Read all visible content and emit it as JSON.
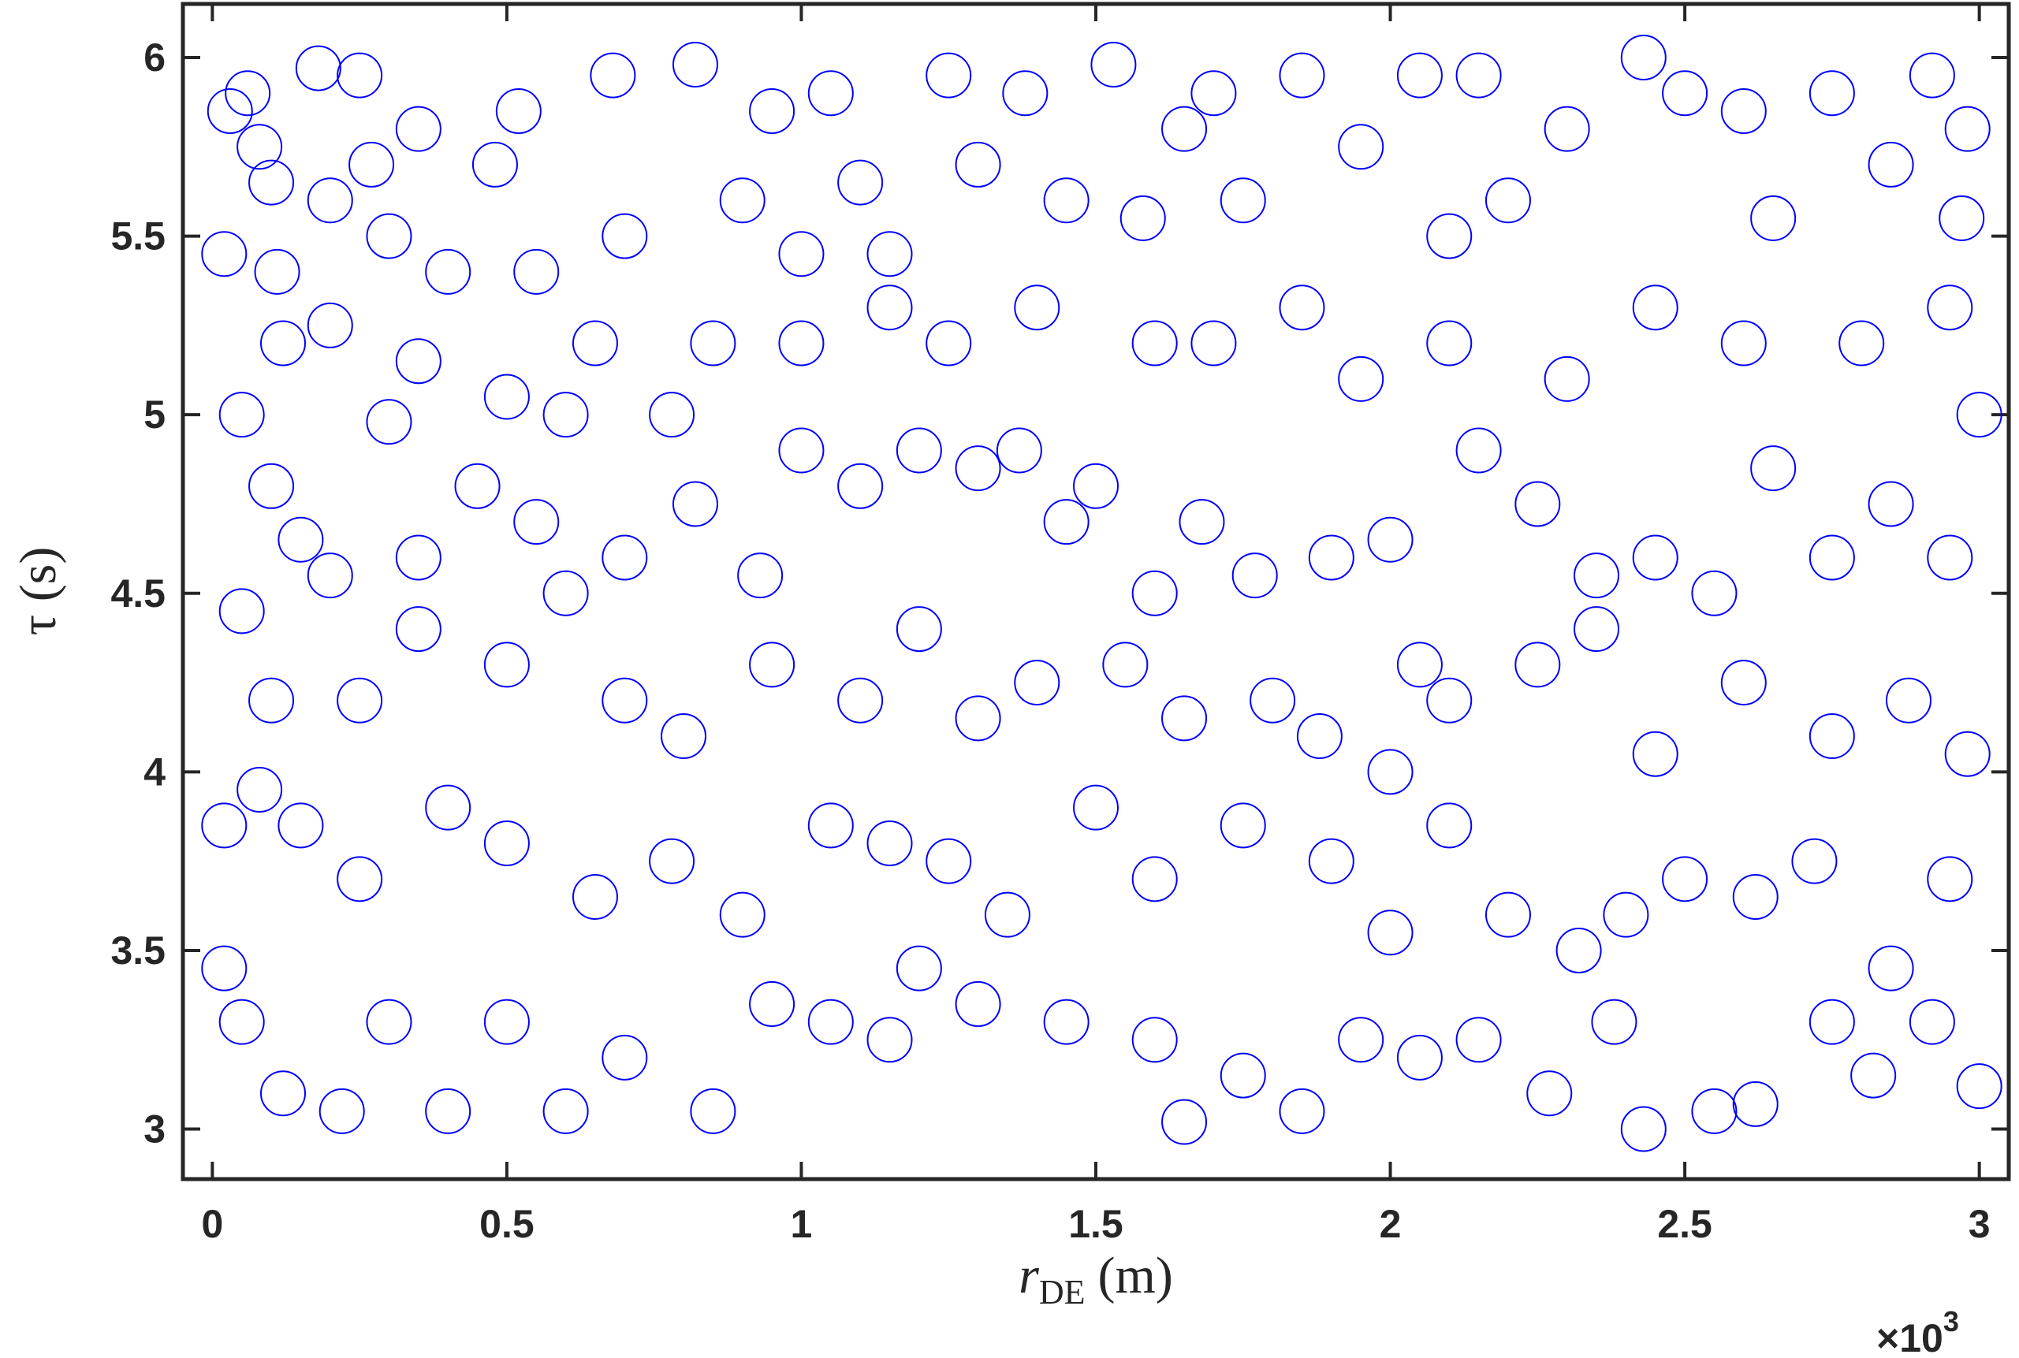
{
  "chart_data": {
    "type": "scatter",
    "marker": "circle",
    "color": "#0000ff",
    "box": true,
    "grid": false,
    "ylabel": "τ (s)",
    "xlabel": "r",
    "xlabel_sub": "DE",
    "xlabel_unit": "(m)",
    "x_multiplier": "×10",
    "x_multiplier_exp": "3",
    "xlim": [
      -50,
      3050
    ],
    "ylim": [
      2.86,
      6.15
    ],
    "xticks": [
      0,
      {
        "value": 500,
        "label": "0.5"
      },
      {
        "value": 1000,
        "label": "1"
      },
      {
        "value": 1500,
        "label": "1.5"
      },
      {
        "value": 2000,
        "label": "2"
      },
      {
        "value": 2500,
        "label": "2.5"
      },
      {
        "value": 3000,
        "label": "3"
      }
    ],
    "yticks": [
      3,
      3.5,
      4,
      4.5,
      5,
      5.5,
      6
    ],
    "x": [
      20,
      30,
      60,
      80,
      100,
      110,
      120,
      180,
      200,
      250,
      270,
      300,
      350,
      400,
      480,
      520,
      550,
      600,
      680,
      700,
      780,
      820,
      900,
      950,
      1000,
      1050,
      1100,
      1150,
      1250,
      1300,
      1380,
      1450,
      1530,
      1580,
      1650,
      1700,
      1750,
      1850,
      1950,
      2050,
      2100,
      2150,
      2200,
      2300,
      2430,
      2500,
      2600,
      2650,
      2750,
      2850,
      2920,
      2980,
      2970,
      50,
      100,
      150,
      200,
      300,
      350,
      450,
      550,
      600,
      700,
      820,
      930,
      1000,
      1100,
      1200,
      1300,
      1370,
      1450,
      1500,
      1600,
      1680,
      1770,
      1900,
      2000,
      2050,
      2150,
      2250,
      2350,
      2450,
      2550,
      2650,
      2750,
      2850,
      2950,
      3000,
      200,
      350,
      500,
      650,
      850,
      1000,
      1150,
      1250,
      1400,
      1600,
      1700,
      1850,
      1950,
      2100,
      2300,
      2450,
      2600,
      2800,
      2950,
      50,
      100,
      250,
      350,
      500,
      700,
      800,
      950,
      1100,
      1200,
      1300,
      1400,
      1550,
      1650,
      1800,
      1880,
      2000,
      2100,
      2250,
      2350,
      2450,
      2600,
      2750,
      2880,
      2980,
      20,
      80,
      150,
      250,
      400,
      500,
      650,
      780,
      900,
      1050,
      1150,
      1250,
      1350,
      1500,
      1600,
      1750,
      1900,
      2000,
      2100,
      2200,
      2320,
      2400,
      2500,
      2620,
      2720,
      2850,
      2950,
      20,
      50,
      120,
      220,
      300,
      400,
      500,
      600,
      700,
      850,
      950,
      1050,
      1150,
      1200,
      1300,
      1450,
      1600,
      1650,
      1750,
      1850,
      1950,
      2050,
      2150,
      2270,
      2380,
      2430,
      2550,
      2620,
      2750,
      2820,
      2920,
      3000
    ],
    "values": [
      5.45,
      5.85,
      5.9,
      5.75,
      5.65,
      5.4,
      5.2,
      5.97,
      5.6,
      5.95,
      5.7,
      5.5,
      5.8,
      5.4,
      5.7,
      5.85,
      5.4,
      5.0,
      5.95,
      5.5,
      5.0,
      5.98,
      5.6,
      5.85,
      5.45,
      5.9,
      5.65,
      5.45,
      5.95,
      5.7,
      5.9,
      5.6,
      5.98,
      5.55,
      5.8,
      5.9,
      5.6,
      5.95,
      5.75,
      5.95,
      5.5,
      5.95,
      5.6,
      5.8,
      6.0,
      5.9,
      5.85,
      5.55,
      5.9,
      5.7,
      5.95,
      5.8,
      5.55,
      5.0,
      4.8,
      4.65,
      4.55,
      4.98,
      4.6,
      4.8,
      4.7,
      4.5,
      4.6,
      4.75,
      4.55,
      4.9,
      4.8,
      4.9,
      4.85,
      4.9,
      4.7,
      4.8,
      4.5,
      4.7,
      4.55,
      4.6,
      4.65,
      4.3,
      4.9,
      4.75,
      4.55,
      4.6,
      4.5,
      4.85,
      4.6,
      4.75,
      4.6,
      5.0,
      5.25,
      5.15,
      5.05,
      5.2,
      5.2,
      5.2,
      5.3,
      5.2,
      5.3,
      5.2,
      5.2,
      5.3,
      5.1,
      5.2,
      5.1,
      5.3,
      5.2,
      5.2,
      5.3,
      4.45,
      4.2,
      4.2,
      4.4,
      4.3,
      4.2,
      4.1,
      4.3,
      4.2,
      4.4,
      4.15,
      4.25,
      4.3,
      4.15,
      4.2,
      4.1,
      4.0,
      4.2,
      4.3,
      4.4,
      4.05,
      4.25,
      4.1,
      4.2,
      4.05,
      3.85,
      3.95,
      3.85,
      3.7,
      3.9,
      3.8,
      3.65,
      3.75,
      3.6,
      3.85,
      3.8,
      3.75,
      3.6,
      3.9,
      3.7,
      3.85,
      3.75,
      3.55,
      3.85,
      3.6,
      3.5,
      3.6,
      3.7,
      3.65,
      3.75,
      3.45,
      3.7,
      3.45,
      3.3,
      3.1,
      3.05,
      3.3,
      3.05,
      3.3,
      3.05,
      3.2,
      3.05,
      3.35,
      3.3,
      3.25,
      3.45,
      3.35,
      3.3,
      3.25,
      3.02,
      3.15,
      3.05,
      3.25,
      3.2,
      3.25,
      3.1,
      3.3,
      3.0,
      3.05,
      3.07,
      3.3,
      3.15,
      3.3,
      3.12
    ]
  }
}
